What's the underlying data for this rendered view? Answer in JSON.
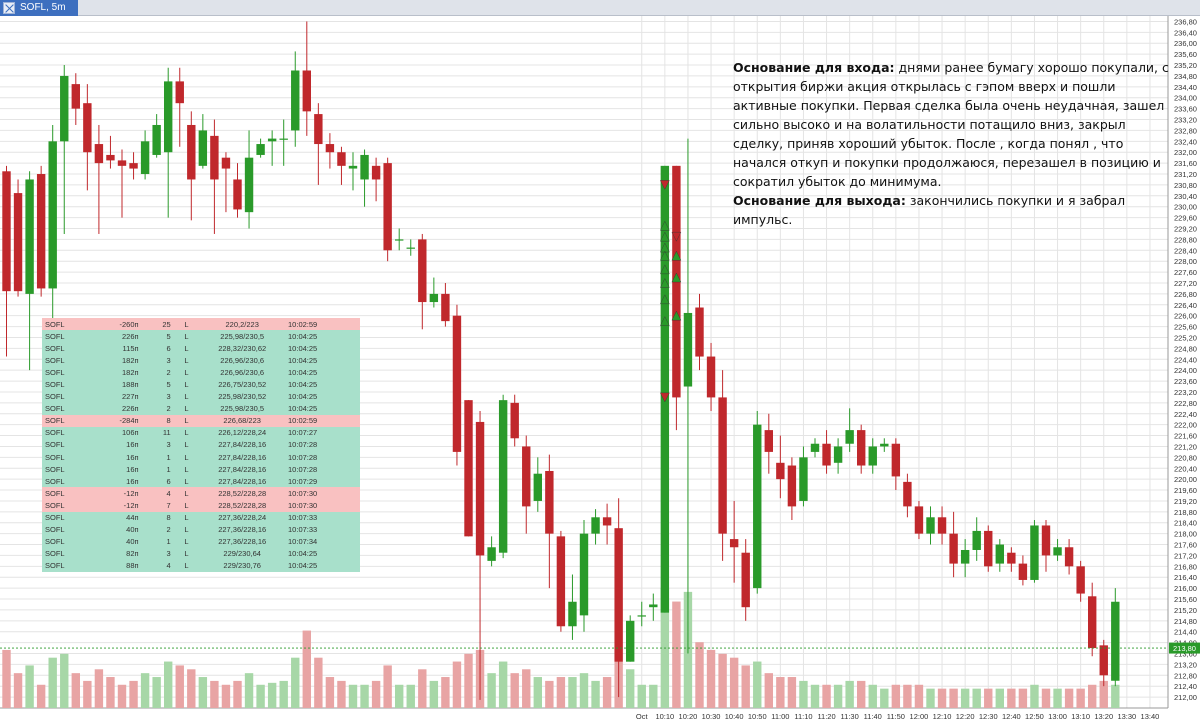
{
  "tab": {
    "title": "SOFL, 5m"
  },
  "note": {
    "entry_title": "Основание для входа:",
    "entry_text": " днями ранее бумагу хорошо покупали, с открытия биржи акция открылась с гэпом вверх и пошли активные покупки.  Первая сделка была очень неудачная, зашел сильно высоко и на волатильности потащило вниз, закрыл сделку, приняв хороший убыток. После , когда понял , что начался откуп и покупки продолжаюся, перезашел в позицию и сократил убыток до минимума.",
    "exit_title": "Основание для выхода:",
    "exit_text": " закончились покупки и я забрал импульс."
  },
  "colors": {
    "up": "#2a9a2a",
    "down": "#c0282c",
    "vol_up": "#a7d7a7",
    "vol_down": "#e8a4a4",
    "grid": "#e4e4e4",
    "price_tag": "#2a9a2a"
  },
  "trades": [
    {
      "sym": "SOFL",
      "pnl": "-260п",
      "qty": "25",
      "side": "L",
      "prices": "220,2/223",
      "time": "10:02:59",
      "type": "r"
    },
    {
      "sym": "SOFL",
      "pnl": "226п",
      "qty": "5",
      "side": "L",
      "prices": "225,98/230,5",
      "time": "10:04:25",
      "type": "g"
    },
    {
      "sym": "SOFL",
      "pnl": "115п",
      "qty": "6",
      "side": "L",
      "prices": "228,32/230,62",
      "time": "10:04:25",
      "type": "g"
    },
    {
      "sym": "SOFL",
      "pnl": "182п",
      "qty": "3",
      "side": "L",
      "prices": "226,96/230,6",
      "time": "10:04:25",
      "type": "g"
    },
    {
      "sym": "SOFL",
      "pnl": "182п",
      "qty": "2",
      "side": "L",
      "prices": "226,96/230,6",
      "time": "10:04:25",
      "type": "g"
    },
    {
      "sym": "SOFL",
      "pnl": "188п",
      "qty": "5",
      "side": "L",
      "prices": "226,75/230,52",
      "time": "10:04:25",
      "type": "g"
    },
    {
      "sym": "SOFL",
      "pnl": "227п",
      "qty": "3",
      "side": "L",
      "prices": "225,98/230,52",
      "time": "10:04:25",
      "type": "g"
    },
    {
      "sym": "SOFL",
      "pnl": "226п",
      "qty": "2",
      "side": "L",
      "prices": "225,98/230,5",
      "time": "10:04:25",
      "type": "g"
    },
    {
      "sym": "SOFL",
      "pnl": "-284п",
      "qty": "8",
      "side": "L",
      "prices": "226,68/223",
      "time": "10:02:59",
      "type": "r"
    },
    {
      "sym": "SOFL",
      "pnl": "106п",
      "qty": "11",
      "side": "L",
      "prices": "226,12/228,24",
      "time": "10:07:27",
      "type": "g"
    },
    {
      "sym": "SOFL",
      "pnl": "16п",
      "qty": "3",
      "side": "L",
      "prices": "227,84/228,16",
      "time": "10:07:28",
      "type": "g"
    },
    {
      "sym": "SOFL",
      "pnl": "16п",
      "qty": "1",
      "side": "L",
      "prices": "227,84/228,16",
      "time": "10:07:28",
      "type": "g"
    },
    {
      "sym": "SOFL",
      "pnl": "16п",
      "qty": "1",
      "side": "L",
      "prices": "227,84/228,16",
      "time": "10:07:28",
      "type": "g"
    },
    {
      "sym": "SOFL",
      "pnl": "16п",
      "qty": "6",
      "side": "L",
      "prices": "227,84/228,16",
      "time": "10:07:29",
      "type": "g"
    },
    {
      "sym": "SOFL",
      "pnl": "-12п",
      "qty": "4",
      "side": "L",
      "prices": "228,52/228,28",
      "time": "10:07:30",
      "type": "r"
    },
    {
      "sym": "SOFL",
      "pnl": "-12п",
      "qty": "7",
      "side": "L",
      "prices": "228,52/228,28",
      "time": "10:07:30",
      "type": "r"
    },
    {
      "sym": "SOFL",
      "pnl": "44п",
      "qty": "8",
      "side": "L",
      "prices": "227,36/228,24",
      "time": "10:07:33",
      "type": "g"
    },
    {
      "sym": "SOFL",
      "pnl": "40п",
      "qty": "2",
      "side": "L",
      "prices": "227,36/228,16",
      "time": "10:07:33",
      "type": "g"
    },
    {
      "sym": "SOFL",
      "pnl": "40п",
      "qty": "1",
      "side": "L",
      "prices": "227,36/228,16",
      "time": "10:07:34",
      "type": "g"
    },
    {
      "sym": "SOFL",
      "pnl": "82п",
      "qty": "3",
      "side": "L",
      "prices": "229/230,64",
      "time": "10:04:25",
      "type": "g"
    },
    {
      "sym": "SOFL",
      "pnl": "88п",
      "qty": "4",
      "side": "L",
      "prices": "229/230,76",
      "time": "10:04:25",
      "type": "g"
    }
  ],
  "chart_data": {
    "type": "candlestick",
    "symbol": "SOFL",
    "timeframe": "5m",
    "ylim": [
      211.6,
      237.0
    ],
    "y_ticks": [
      "236,80",
      "236,40",
      "236,00",
      "235,60",
      "235,20",
      "234,80",
      "234,40",
      "234,00",
      "233,60",
      "233,20",
      "232,80",
      "232,40",
      "232,00",
      "231,60",
      "231,20",
      "230,80",
      "230,40",
      "230,00",
      "229,60",
      "229,20",
      "228,80",
      "228,40",
      "228,00",
      "227,60",
      "227,20",
      "226,80",
      "226,40",
      "226,00",
      "225,60",
      "225,20",
      "224,80",
      "224,40",
      "224,00",
      "223,60",
      "223,20",
      "222,80",
      "222,40",
      "222,00",
      "221,60",
      "221,20",
      "220,80",
      "220,40",
      "220,00",
      "219,60",
      "219,20",
      "218,80",
      "218,40",
      "218,00",
      "217,60",
      "217,20",
      "216,80",
      "216,40",
      "216,00",
      "215,60",
      "215,20",
      "214,80",
      "214,40",
      "214,00",
      "213,60",
      "213,20",
      "212,80",
      "212,40",
      "212,00"
    ],
    "x_ticks": [
      {
        "label": "Oct",
        "bar": 55
      },
      {
        "label": "10:10",
        "bar": 57
      },
      {
        "label": "10:20",
        "bar": 59
      },
      {
        "label": "10:30",
        "bar": 61
      },
      {
        "label": "10:40",
        "bar": 63
      },
      {
        "label": "10:50",
        "bar": 65
      },
      {
        "label": "11:00",
        "bar": 67
      },
      {
        "label": "11:10",
        "bar": 69
      },
      {
        "label": "11:20",
        "bar": 71
      },
      {
        "label": "11:30",
        "bar": 73
      },
      {
        "label": "11:40",
        "bar": 75
      },
      {
        "label": "11:50",
        "bar": 77
      },
      {
        "label": "12:00",
        "bar": 79
      },
      {
        "label": "12:10",
        "bar": 81
      },
      {
        "label": "12:20",
        "bar": 83
      },
      {
        "label": "12:30",
        "bar": 85
      },
      {
        "label": "12:40",
        "bar": 87
      },
      {
        "label": "12:50",
        "bar": 89
      },
      {
        "label": "13:00",
        "bar": 91
      },
      {
        "label": "13:10",
        "bar": 93
      },
      {
        "label": "13:20",
        "bar": 95
      },
      {
        "label": "13:30",
        "bar": 97
      },
      {
        "label": "13:40",
        "bar": 99
      }
    ],
    "current_price": "213,80",
    "current_price_value": 213.8,
    "candles": [
      [
        231.3,
        226.9,
        231.5,
        224.5,
        30
      ],
      [
        230.5,
        226.9,
        231.0,
        226.7,
        18
      ],
      [
        226.8,
        231.0,
        231.3,
        224.0,
        22
      ],
      [
        231.2,
        227.0,
        231.5,
        226.7,
        12
      ],
      [
        227.0,
        232.4,
        233.0,
        222.5,
        26
      ],
      [
        232.4,
        234.8,
        235.2,
        229.0,
        28
      ],
      [
        234.5,
        233.6,
        234.9,
        233.0,
        18
      ],
      [
        233.8,
        232.0,
        234.5,
        230.6,
        14
      ],
      [
        232.3,
        231.6,
        233.0,
        229.0,
        20
      ],
      [
        231.9,
        231.7,
        232.6,
        231.4,
        16
      ],
      [
        231.7,
        231.5,
        232.1,
        229.6,
        12
      ],
      [
        231.6,
        231.4,
        232.0,
        231.0,
        14
      ],
      [
        231.2,
        232.4,
        232.8,
        231.0,
        18
      ],
      [
        231.9,
        233.0,
        233.4,
        231.8,
        16
      ],
      [
        232.0,
        234.6,
        235.1,
        229.6,
        24
      ],
      [
        234.6,
        233.8,
        235.1,
        232.2,
        22
      ],
      [
        233.0,
        231.0,
        233.5,
        229.5,
        20
      ],
      [
        231.5,
        232.8,
        233.4,
        231.4,
        16
      ],
      [
        232.6,
        231.0,
        233.2,
        229.0,
        14
      ],
      [
        231.8,
        231.4,
        232.0,
        229.8,
        12
      ],
      [
        231.0,
        229.9,
        231.6,
        229.6,
        14
      ],
      [
        229.8,
        231.8,
        232.8,
        229.2,
        18
      ],
      [
        231.9,
        232.3,
        232.5,
        231.8,
        12
      ],
      [
        232.4,
        232.5,
        232.8,
        231.5,
        13
      ],
      [
        232.5,
        232.5,
        233.2,
        231.5,
        14
      ],
      [
        232.8,
        235.0,
        235.7,
        232.2,
        26
      ],
      [
        235.0,
        233.5,
        236.8,
        232.6,
        40
      ],
      [
        233.4,
        232.3,
        233.8,
        230.8,
        26
      ],
      [
        232.3,
        232.0,
        232.7,
        231.4,
        16
      ],
      [
        232.0,
        231.5,
        232.2,
        230.8,
        14
      ],
      [
        231.4,
        231.5,
        232.0,
        230.6,
        12
      ],
      [
        231.0,
        231.9,
        232.1,
        230.0,
        12
      ],
      [
        231.5,
        231.0,
        231.8,
        230.2,
        14
      ],
      [
        231.6,
        228.4,
        231.8,
        228.0,
        22
      ],
      [
        228.8,
        228.8,
        229.2,
        228.4,
        12
      ],
      [
        228.5,
        228.5,
        228.8,
        228.2,
        12
      ],
      [
        228.8,
        226.5,
        229.0,
        225.5,
        20
      ],
      [
        226.5,
        226.8,
        227.4,
        226.3,
        14
      ],
      [
        226.8,
        225.8,
        227.2,
        225.6,
        16
      ],
      [
        226.0,
        221.0,
        226.4,
        220.5,
        24
      ],
      [
        222.9,
        217.9,
        222.9,
        217.9,
        28
      ],
      [
        222.1,
        217.2,
        222.5,
        211.9,
        30
      ],
      [
        217.0,
        217.5,
        217.9,
        216.8,
        18
      ],
      [
        217.3,
        222.9,
        223.1,
        217.1,
        24
      ],
      [
        222.8,
        221.5,
        223.1,
        221.2,
        18
      ],
      [
        221.2,
        219.0,
        221.6,
        218.0,
        20
      ],
      [
        219.2,
        220.2,
        220.8,
        218.8,
        16
      ],
      [
        220.3,
        218.0,
        220.9,
        216.0,
        14
      ],
      [
        217.9,
        214.6,
        218.1,
        214.4,
        16
      ],
      [
        214.6,
        215.5,
        216.5,
        214.1,
        16
      ],
      [
        215.0,
        218.0,
        218.5,
        214.4,
        18
      ],
      [
        218.0,
        218.6,
        218.9,
        217.6,
        14
      ],
      [
        218.6,
        218.3,
        219.1,
        217.6,
        16
      ],
      [
        218.2,
        213.3,
        219.3,
        212.0,
        24
      ],
      [
        213.3,
        214.8,
        215.0,
        213.3,
        20
      ],
      [
        215.0,
        215.0,
        215.5,
        214.6,
        12
      ],
      [
        215.3,
        215.4,
        215.8,
        214.8,
        12
      ],
      [
        215.1,
        231.5,
        231.5,
        215.1,
        62
      ],
      [
        231.5,
        223.0,
        231.5,
        221.8,
        55
      ],
      [
        223.4,
        226.1,
        232.5,
        213.6,
        60
      ],
      [
        226.3,
        224.5,
        226.8,
        224.0,
        34
      ],
      [
        224.5,
        223.0,
        225.0,
        222.5,
        30
      ],
      [
        223.0,
        218.0,
        224.0,
        217.0,
        28
      ],
      [
        217.8,
        217.5,
        219.2,
        216.2,
        26
      ],
      [
        217.3,
        215.3,
        217.8,
        214.8,
        22
      ],
      [
        216.0,
        222.0,
        222.5,
        215.8,
        24
      ],
      [
        221.8,
        221.0,
        222.4,
        220.2,
        18
      ],
      [
        220.6,
        220.0,
        221.6,
        219.3,
        16
      ],
      [
        220.5,
        219.0,
        220.8,
        218.5,
        16
      ],
      [
        219.2,
        220.8,
        221.2,
        219.0,
        14
      ],
      [
        221.0,
        221.3,
        221.5,
        220.8,
        12
      ],
      [
        221.3,
        220.5,
        221.8,
        220.2,
        12
      ],
      [
        220.6,
        221.2,
        221.5,
        220.2,
        12
      ],
      [
        221.3,
        221.8,
        222.6,
        221.0,
        14
      ],
      [
        221.8,
        220.5,
        222.0,
        220.2,
        14
      ],
      [
        220.5,
        221.2,
        221.5,
        220.2,
        12
      ],
      [
        221.2,
        221.3,
        221.5,
        221.0,
        10
      ],
      [
        221.3,
        220.1,
        221.5,
        219.6,
        12
      ],
      [
        219.9,
        219.0,
        220.2,
        218.6,
        12
      ],
      [
        219.0,
        218.0,
        219.2,
        217.8,
        12
      ],
      [
        218.0,
        218.6,
        219.0,
        217.6,
        10
      ],
      [
        218.6,
        218.0,
        219.0,
        217.6,
        10
      ],
      [
        218.0,
        216.9,
        218.8,
        216.4,
        10
      ],
      [
        216.9,
        217.4,
        217.8,
        216.4,
        10
      ],
      [
        217.4,
        218.1,
        218.6,
        217.0,
        10
      ],
      [
        218.1,
        216.8,
        218.3,
        216.6,
        10
      ],
      [
        216.9,
        217.6,
        217.8,
        216.6,
        10
      ],
      [
        217.3,
        216.9,
        217.5,
        216.6,
        10
      ],
      [
        216.9,
        216.3,
        217.2,
        216.1,
        10
      ],
      [
        216.3,
        218.3,
        218.5,
        216.2,
        12
      ],
      [
        218.3,
        217.2,
        218.5,
        216.6,
        10
      ],
      [
        217.2,
        217.5,
        217.8,
        217.0,
        10
      ],
      [
        217.5,
        216.8,
        217.8,
        216.5,
        10
      ],
      [
        216.8,
        215.8,
        217.0,
        215.5,
        10
      ],
      [
        215.7,
        213.8,
        216.2,
        213.5,
        12
      ],
      [
        213.9,
        212.8,
        214.1,
        212.4,
        14
      ],
      [
        212.6,
        215.5,
        216.0,
        212.4,
        12
      ]
    ],
    "markers": [
      {
        "bar": 57,
        "price": 230.8,
        "dir": "down",
        "color": "#c0282c"
      },
      {
        "bar": 57,
        "price": 229.3,
        "dir": "up",
        "color": "#2a9a2a"
      },
      {
        "bar": 57,
        "price": 228.9,
        "dir": "up",
        "color": "#2a9a2a"
      },
      {
        "bar": 57,
        "price": 228.5,
        "dir": "up",
        "color": "#2a9a2a"
      },
      {
        "bar": 57,
        "price": 228.2,
        "dir": "up",
        "color": "#2a9a2a"
      },
      {
        "bar": 57,
        "price": 227.7,
        "dir": "up",
        "color": "#2a9a2a"
      },
      {
        "bar": 57,
        "price": 227.2,
        "dir": "up",
        "color": "#2a9a2a"
      },
      {
        "bar": 57,
        "price": 226.6,
        "dir": "up",
        "color": "#2a9a2a"
      },
      {
        "bar": 57,
        "price": 225.8,
        "dir": "up",
        "color": "#2a9a2a"
      },
      {
        "bar": 57,
        "price": 223.0,
        "dir": "down",
        "color": "#c0282c"
      },
      {
        "bar": 58,
        "price": 228.9,
        "dir": "down",
        "color": "#c0282c"
      },
      {
        "bar": 58,
        "price": 228.2,
        "dir": "up",
        "color": "#2a9a2a"
      },
      {
        "bar": 58,
        "price": 227.4,
        "dir": "up",
        "color": "#2a9a2a"
      },
      {
        "bar": 58,
        "price": 226.0,
        "dir": "up",
        "color": "#2a9a2a"
      }
    ]
  }
}
